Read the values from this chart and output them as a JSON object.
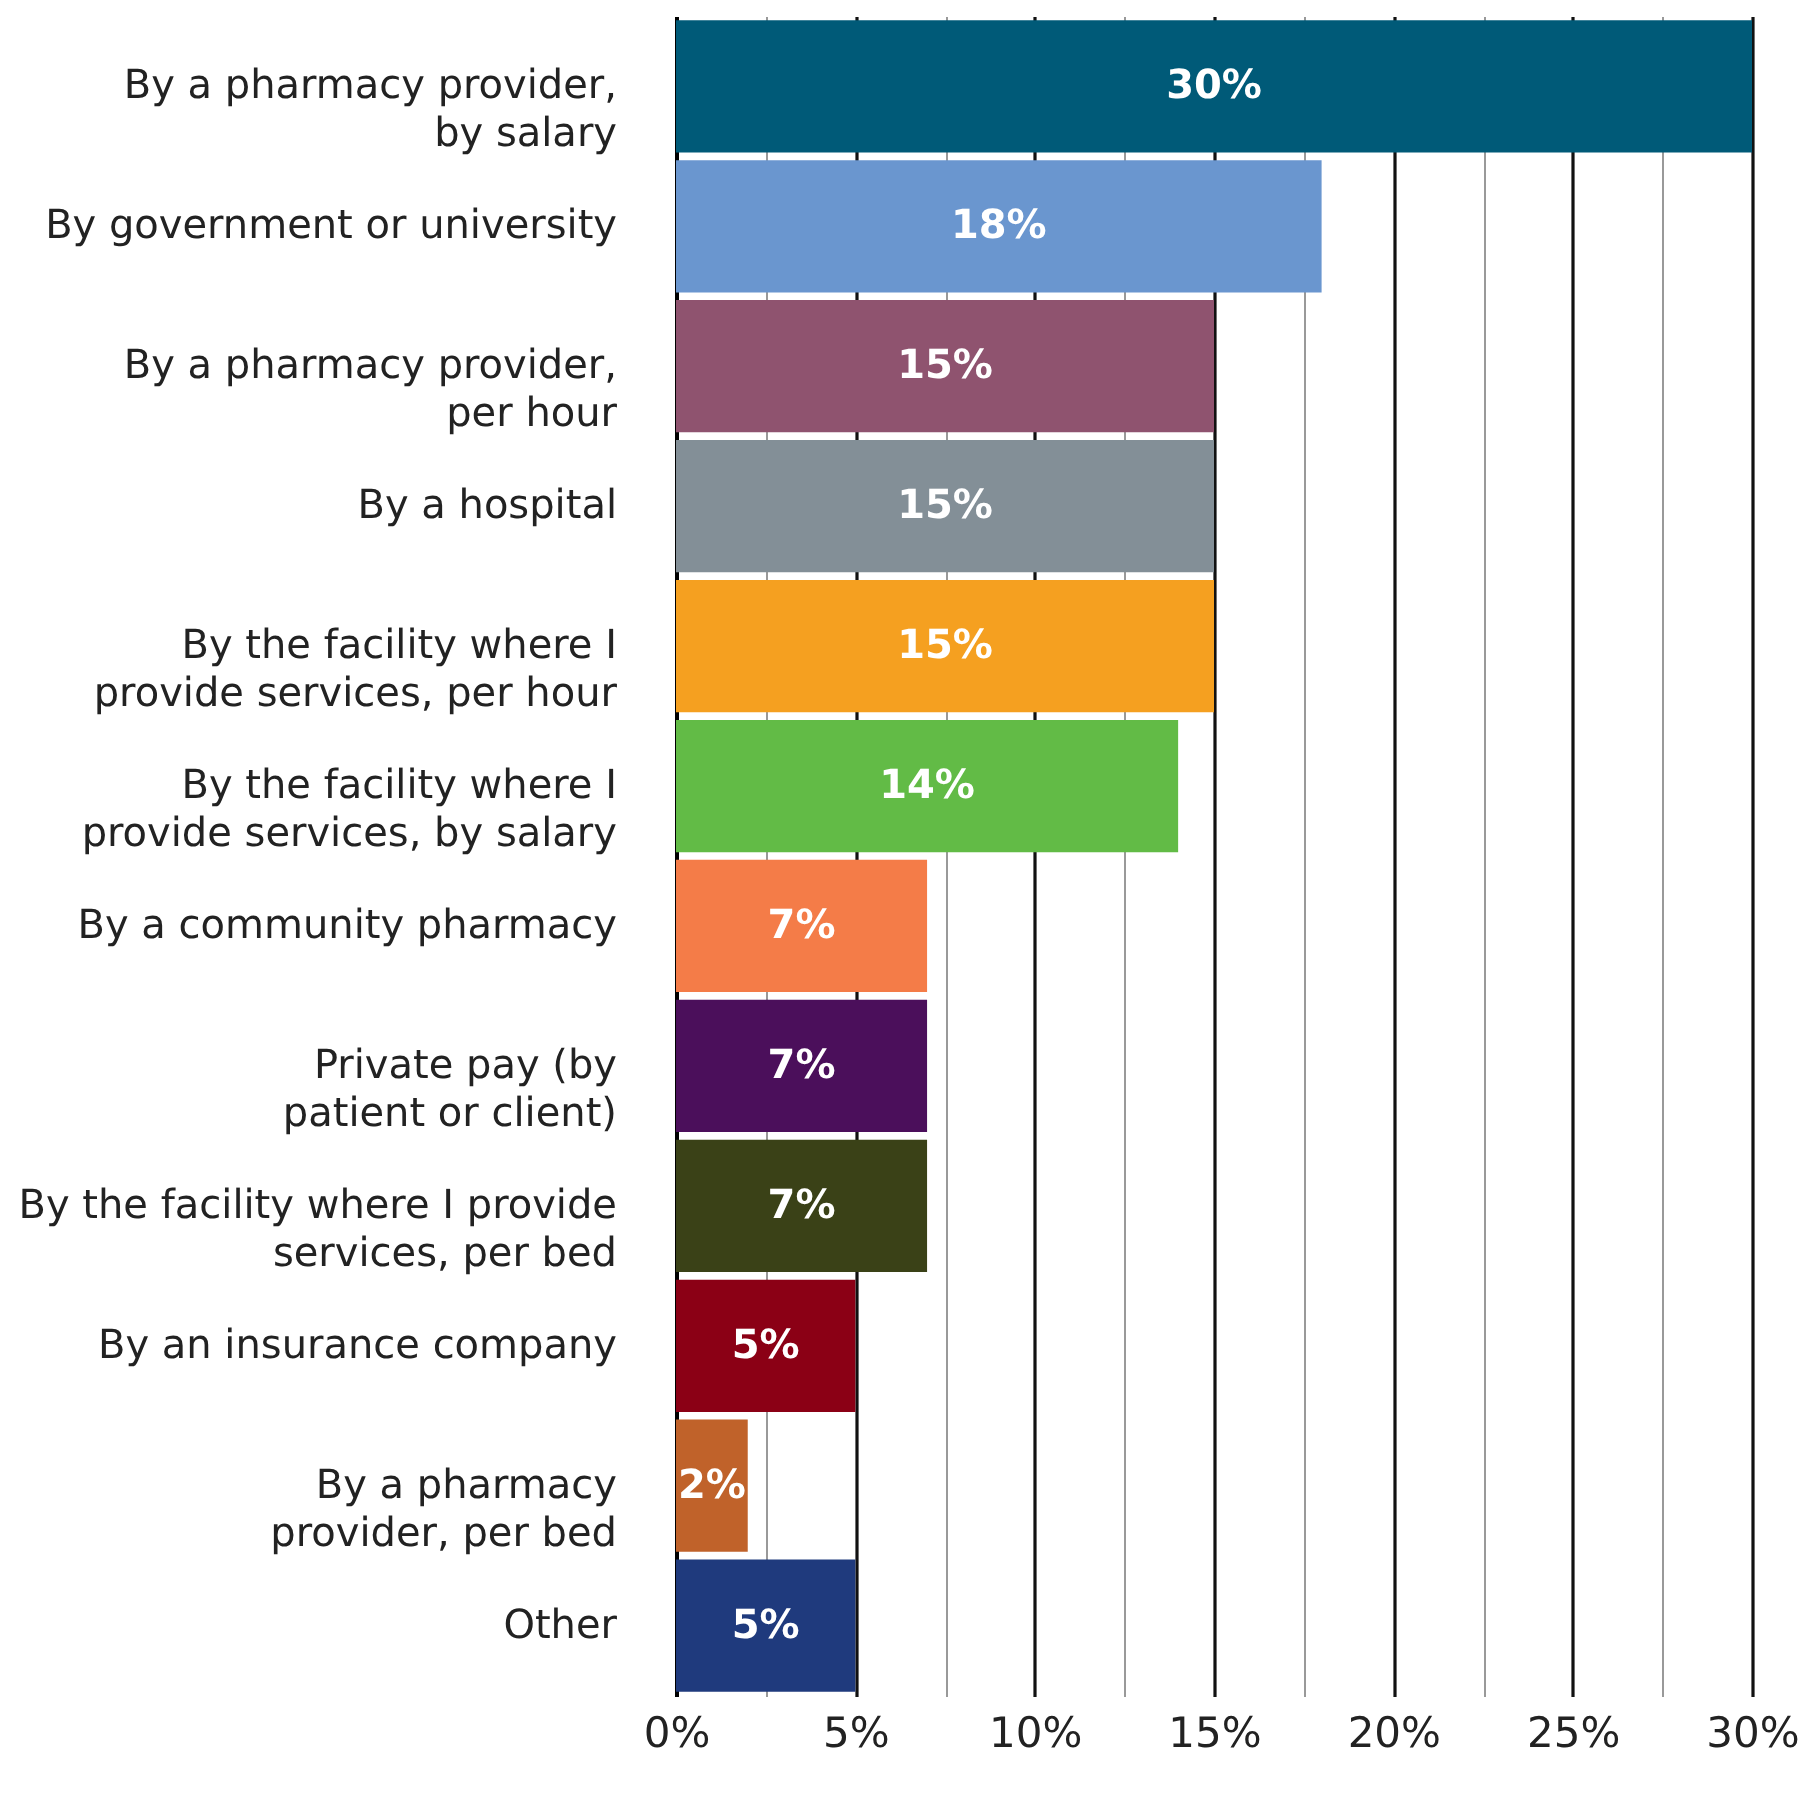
{
  "chart_data": {
    "type": "bar",
    "orientation": "horizontal",
    "categories": [
      "By a pharmacy provider,\nby salary",
      "By government or university",
      "By a pharmacy provider,\nper hour",
      "By a hospital",
      "By the facility where I\nprovide services, per hour",
      "By the facility where I\nprovide services, by salary",
      "By a community pharmacy",
      "Private pay (by\npatient or client)",
      "By the facility where I provide\nservices, per bed",
      "By an insurance company",
      "By a pharmacy\nprovider, per bed",
      "Other"
    ],
    "values": [
      30,
      18,
      15,
      15,
      15,
      14,
      7,
      7,
      7,
      5,
      2,
      5
    ],
    "value_labels": [
      "30%",
      "18%",
      "15%",
      "15%",
      "15%",
      "14%",
      "7%",
      "7%",
      "7%",
      "5%",
      "2%",
      "5%"
    ],
    "colors": [
      "#005a78",
      "#6a96cf",
      "#8f536f",
      "#838f97",
      "#f5a020",
      "#62bb46",
      "#f47c48",
      "#4b0f5b",
      "#3a4117",
      "#8b0015",
      "#c0622a",
      "#1f3a7d"
    ],
    "xlim": [
      0,
      30
    ],
    "xticks": [
      {
        "value": 0,
        "label": "0%"
      },
      {
        "value": 2.5,
        "label": null
      },
      {
        "value": 5,
        "label": "5%"
      },
      {
        "value": 7.5,
        "label": null
      },
      {
        "value": 10,
        "label": "10%"
      },
      {
        "value": 12.5,
        "label": null
      },
      {
        "value": 15,
        "label": "15%"
      },
      {
        "value": 17.5,
        "label": null
      },
      {
        "value": 20,
        "label": "20%"
      },
      {
        "value": 22.5,
        "label": null
      },
      {
        "value": 25,
        "label": "25%"
      },
      {
        "value": 27.5,
        "label": null
      },
      {
        "value": 30,
        "label": "30%"
      }
    ],
    "grid": "x"
  }
}
